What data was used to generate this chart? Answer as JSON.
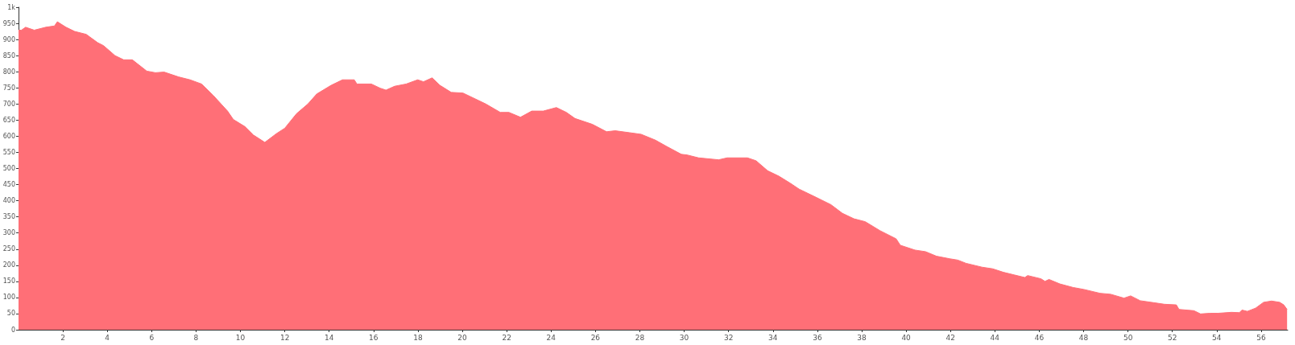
{
  "chart_data": {
    "type": "area",
    "marker": "none",
    "grid": false,
    "xlim": [
      0,
      57.2
    ],
    "xticks": [
      2,
      4,
      6,
      8,
      10,
      12,
      14,
      16,
      18,
      20,
      22,
      24,
      26,
      28,
      30,
      32,
      34,
      36,
      38,
      40,
      42,
      44,
      46,
      48,
      50,
      52,
      54,
      56
    ],
    "ylim": [
      0,
      1000
    ],
    "yticks": [
      0,
      50,
      100,
      150,
      200,
      250,
      300,
      350,
      400,
      450,
      500,
      550,
      600,
      650,
      700,
      750,
      800,
      850,
      900,
      950,
      {
        "value": 1000,
        "label": "1k"
      }
    ],
    "series": [
      {
        "color": "#ff6f77",
        "x": [
          0,
          0.13,
          0.32,
          0.71,
          1.23,
          1.62,
          1.75,
          2.14,
          2.53,
          3.05,
          3.57,
          3.83,
          4.35,
          4.74,
          5.13,
          5.78,
          6.17,
          6.56,
          7.21,
          7.73,
          8.25,
          8.77,
          9.42,
          9.68,
          10.2,
          10.58,
          11.1,
          11.62,
          12.0,
          12.53,
          13.04,
          13.44,
          14.09,
          14.6,
          15.13,
          15.25,
          15.9,
          16.3,
          16.56,
          16.95,
          17.47,
          17.99,
          18.25,
          18.64,
          18.99,
          19.5,
          20.03,
          21.06,
          21.71,
          22.1,
          22.62,
          23.13,
          23.65,
          24.24,
          24.69,
          25.08,
          25.86,
          26.5,
          26.89,
          27.54,
          28.06,
          28.7,
          29.22,
          29.87,
          30.13,
          30.65,
          31.55,
          31.94,
          32.85,
          33.24,
          33.76,
          34.27,
          34.79,
          35.18,
          35.96,
          36.61,
          37.13,
          37.65,
          38.16,
          38.83,
          39.55,
          39.74,
          40.4,
          40.88,
          41.37,
          41.97,
          42.33,
          42.7,
          43.42,
          43.9,
          44.39,
          44.87,
          45.35,
          45.48,
          46.08,
          46.26,
          46.44,
          46.93,
          47.53,
          48.01,
          48.74,
          49.22,
          49.82,
          50.12,
          50.55,
          51.15,
          51.64,
          52.18,
          52.3,
          52.97,
          53.27,
          53.69,
          54.05,
          54.66,
          55.02,
          55.14,
          55.38,
          55.75,
          56.11,
          56.47,
          56.84,
          57.02,
          57.17
        ],
        "values": [
          929,
          929,
          938,
          929,
          938,
          942,
          955,
          938,
          925,
          916,
          890,
          881,
          850,
          837,
          837,
          802,
          797,
          799,
          784,
          775,
          762,
          727,
          678,
          652,
          630,
          604,
          581,
          608,
          625,
          670,
          700,
          731,
          758,
          775,
          775,
          762,
          762,
          749,
          743,
          755,
          762,
          775,
          769,
          781,
          758,
          736,
          734,
          700,
          674,
          674,
          659,
          678,
          678,
          689,
          674,
          655,
          637,
          614,
          617,
          611,
          606,
          588,
          568,
          544,
          542,
          533,
          527,
          533,
          533,
          524,
          493,
          476,
          454,
          436,
          410,
          388,
          361,
          344,
          335,
          307,
          282,
          262,
          247,
          242,
          228,
          220,
          216,
          206,
          194,
          189,
          178,
          170,
          162,
          168,
          158,
          150,
          156,
          142,
          131,
          125,
          113,
          110,
          98,
          105,
          90,
          84,
          79,
          77,
          63,
          59,
          49,
          51,
          51,
          54,
          53,
          61,
          57,
          67,
          85,
          89,
          85,
          77,
          63
        ]
      }
    ]
  }
}
